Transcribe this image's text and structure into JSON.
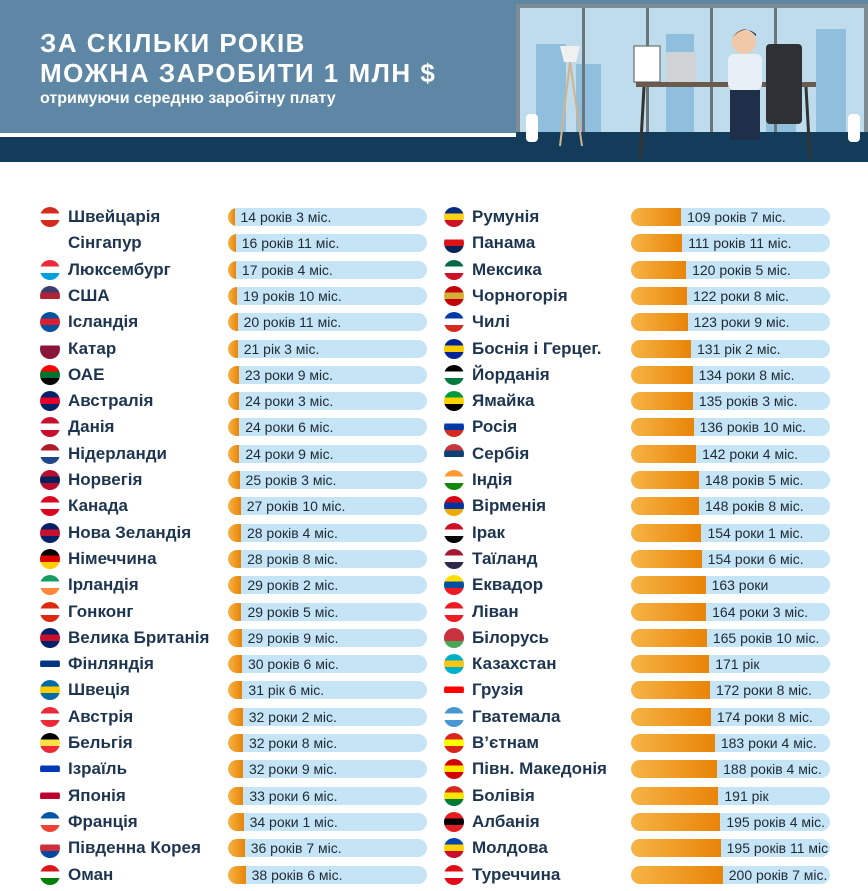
{
  "header": {
    "title_line1": "ЗА СКІЛЬКИ РОКІВ",
    "title_line2": "МОЖНА ЗАРОБИТИ 1 МЛН $",
    "subtitle": "отримуючи середню заробітну плату"
  },
  "chart_data": {
    "type": "bar",
    "title": "За скільки років можна заробити 1 млн $",
    "subtitle": "отримуючи середню заробітну плату",
    "unit": "years",
    "colors": {
      "fill": "#e98408",
      "track": "#c5e4f6"
    },
    "columns": [
      [
        {
          "country": "Швейцарія",
          "label": "14 років 3 міс.",
          "value": 14.25,
          "flag": [
            "#d52b1e",
            "#ffffff",
            "#d52b1e"
          ]
        },
        {
          "country": "Сінгапур",
          "label": "16 років 11 міс.",
          "value": 16.92,
          "flag": [
            "#ef3340",
            "#ffffff"
          ]
        },
        {
          "country": "Люксембург",
          "label": "17 років 4 міс.",
          "value": 17.33,
          "flag": [
            "#ed2939",
            "#ffffff",
            "#00a1de"
          ]
        },
        {
          "country": "США",
          "label": "19 років 10 міс.",
          "value": 19.83,
          "flag": [
            "#3c3b6e",
            "#b22234",
            "#ffffff"
          ]
        },
        {
          "country": "Ісландія",
          "label": "20 років 11 міс.",
          "value": 20.92,
          "flag": [
            "#02529c",
            "#dc1e35",
            "#02529c"
          ]
        },
        {
          "country": "Катар",
          "label": "21 рік 3 міс.",
          "value": 21.25,
          "flag": [
            "#ffffff",
            "#8a1538",
            "#8a1538"
          ]
        },
        {
          "country": "ОАЕ",
          "label": "23 роки 9 міс.",
          "value": 23.75,
          "flag": [
            "#ff0000",
            "#00732f",
            "#000000"
          ]
        },
        {
          "country": "Австралія",
          "label": "24 роки 3 міс.",
          "value": 24.25,
          "flag": [
            "#012169",
            "#e4002b",
            "#012169"
          ]
        },
        {
          "country": "Данія",
          "label": "24 роки 6 міс.",
          "value": 24.5,
          "flag": [
            "#c8102e",
            "#ffffff",
            "#c8102e"
          ]
        },
        {
          "country": "Нідерланди",
          "label": "24 роки 9 міс.",
          "value": 24.75,
          "flag": [
            "#ae1c28",
            "#ffffff",
            "#21468b"
          ]
        },
        {
          "country": "Норвегія",
          "label": "25 років 3 міс.",
          "value": 25.25,
          "flag": [
            "#ba0c2f",
            "#00205b",
            "#ba0c2f"
          ]
        },
        {
          "country": "Канада",
          "label": "27 років 10 міс.",
          "value": 27.83,
          "flag": [
            "#d80621",
            "#ffffff",
            "#d80621"
          ]
        },
        {
          "country": "Нова Зеландія",
          "label": "28 років 4 міс.",
          "value": 28.33,
          "flag": [
            "#012169",
            "#c8102e",
            "#012169"
          ]
        },
        {
          "country": "Німеччина",
          "label": "28 років 8 міс.",
          "value": 28.67,
          "flag": [
            "#000000",
            "#dd0000",
            "#ffce00"
          ]
        },
        {
          "country": "Ірландія",
          "label": "29 років 2 міс.",
          "value": 29.17,
          "flag": [
            "#169b62",
            "#ffffff",
            "#ff883e"
          ]
        },
        {
          "country": "Гонконг",
          "label": "29 років 5 міс.",
          "value": 29.42,
          "flag": [
            "#de2910",
            "#ffffff",
            "#de2910"
          ]
        },
        {
          "country": "Велика Британія",
          "label": "29 років 9 міс.",
          "value": 29.75,
          "flag": [
            "#012169",
            "#c8102e",
            "#012169"
          ]
        },
        {
          "country": "Фінляндія",
          "label": "30 років 6 міс.",
          "value": 30.5,
          "flag": [
            "#ffffff",
            "#003580",
            "#ffffff"
          ]
        },
        {
          "country": "Швеція",
          "label": "31 рік 6 міс.",
          "value": 31.5,
          "flag": [
            "#006aa7",
            "#fecc00",
            "#006aa7"
          ]
        },
        {
          "country": "Австрія",
          "label": "32 роки 2 міс.",
          "value": 32.17,
          "flag": [
            "#ed2939",
            "#ffffff",
            "#ed2939"
          ]
        },
        {
          "country": "Бельгія",
          "label": "32 роки 8 міс.",
          "value": 32.67,
          "flag": [
            "#000000",
            "#fae042",
            "#ed2939"
          ]
        },
        {
          "country": "Ізраїль",
          "label": "32 роки 9 міс.",
          "value": 32.75,
          "flag": [
            "#ffffff",
            "#0038b8",
            "#ffffff"
          ]
        },
        {
          "country": "Японія",
          "label": "33 роки 6 міс.",
          "value": 33.5,
          "flag": [
            "#ffffff",
            "#bc002d",
            "#ffffff"
          ]
        },
        {
          "country": "Франція",
          "label": "34 роки 1 міс.",
          "value": 34.08,
          "flag": [
            "#0055a4",
            "#ffffff",
            "#ef4135"
          ]
        },
        {
          "country": "Південна Корея",
          "label": "36 років 7 міс.",
          "value": 36.58,
          "flag": [
            "#ffffff",
            "#cd2e3a",
            "#0047a0"
          ]
        },
        {
          "country": "Оман",
          "label": "38 років 6 міс.",
          "value": 38.5,
          "flag": [
            "#db161b",
            "#ffffff",
            "#008000"
          ]
        }
      ],
      [
        {
          "country": "Румунія",
          "label": "109 років 7 міс.",
          "value": 109.58,
          "flag": [
            "#002b7f",
            "#fcd116",
            "#ce1126"
          ]
        },
        {
          "country": "Панама",
          "label": "111 років 11 міс.",
          "value": 111.92,
          "flag": [
            "#ffffff",
            "#da121a",
            "#072357"
          ]
        },
        {
          "country": "Мексика",
          "label": "120 років 5 міс.",
          "value": 120.42,
          "flag": [
            "#006847",
            "#ffffff",
            "#ce1126"
          ]
        },
        {
          "country": "Чорногорія",
          "label": "122 роки 8 міс.",
          "value": 122.67,
          "flag": [
            "#c40308",
            "#d4af37",
            "#c40308"
          ]
        },
        {
          "country": "Чилі",
          "label": "123 роки 9 міс.",
          "value": 123.75,
          "flag": [
            "#0039a6",
            "#ffffff",
            "#d52b1e"
          ]
        },
        {
          "country": "Боснія і Герцег.",
          "label": "131 рік 2 міс.",
          "value": 131.17,
          "flag": [
            "#002395",
            "#fecb00",
            "#002395"
          ]
        },
        {
          "country": "Йорданія",
          "label": "134 роки 8 міс.",
          "value": 134.67,
          "flag": [
            "#000000",
            "#ffffff",
            "#007a3d"
          ]
        },
        {
          "country": "Ямайка",
          "label": "135 років 3 міс.",
          "value": 135.25,
          "flag": [
            "#009b3a",
            "#fed100",
            "#000000"
          ]
        },
        {
          "country": "Росія",
          "label": "136 років 10 міс.",
          "value": 136.83,
          "flag": [
            "#ffffff",
            "#0039a6",
            "#d52b1e"
          ]
        },
        {
          "country": "Сербія",
          "label": "142 роки 4 міс.",
          "value": 142.33,
          "flag": [
            "#c6363c",
            "#0c4076",
            "#ffffff"
          ]
        },
        {
          "country": "Індія",
          "label": "148 років 5 міс.",
          "value": 148.42,
          "flag": [
            "#ff9933",
            "#ffffff",
            "#138808"
          ]
        },
        {
          "country": "Вірменія",
          "label": "148 років 8 міс.",
          "value": 148.67,
          "flag": [
            "#d90012",
            "#0033a0",
            "#f2a800"
          ]
        },
        {
          "country": "Ірак",
          "label": "154 роки 1 міс.",
          "value": 154.08,
          "flag": [
            "#ce1126",
            "#ffffff",
            "#000000"
          ]
        },
        {
          "country": "Таїланд",
          "label": "154 роки 6 міс.",
          "value": 154.5,
          "flag": [
            "#a51931",
            "#ffffff",
            "#2d2a4a"
          ]
        },
        {
          "country": "Еквадор",
          "label": "163 роки",
          "value": 163.0,
          "flag": [
            "#ffdd00",
            "#034ea2",
            "#ed1c24"
          ]
        },
        {
          "country": "Ліван",
          "label": "164 роки 3 міс.",
          "value": 164.25,
          "flag": [
            "#ed1c24",
            "#ffffff",
            "#ed1c24"
          ]
        },
        {
          "country": "Білорусь",
          "label": "165 років 10 міс.",
          "value": 165.83,
          "flag": [
            "#c8313e",
            "#c8313e",
            "#4aa657"
          ]
        },
        {
          "country": "Казахстан",
          "label": "171 рік",
          "value": 171.0,
          "flag": [
            "#00afca",
            "#fec50c",
            "#00afca"
          ]
        },
        {
          "country": "Грузія",
          "label": "172 роки 8 міс.",
          "value": 172.67,
          "flag": [
            "#ffffff",
            "#ff0000",
            "#ffffff"
          ]
        },
        {
          "country": "Гватемала",
          "label": "174 роки 8 міс.",
          "value": 174.67,
          "flag": [
            "#4997d0",
            "#ffffff",
            "#4997d0"
          ]
        },
        {
          "country": "В’єтнам",
          "label": "183 роки 4 міс.",
          "value": 183.33,
          "flag": [
            "#da251d",
            "#ffff00",
            "#da251d"
          ]
        },
        {
          "country": "Півн. Македонія",
          "label": "188 років 4 міс.",
          "value": 188.33,
          "flag": [
            "#d20000",
            "#ffe600",
            "#d20000"
          ]
        },
        {
          "country": "Болівія",
          "label": "191 рік",
          "value": 191.0,
          "flag": [
            "#d52b1e",
            "#f9e300",
            "#007934"
          ]
        },
        {
          "country": "Албанія",
          "label": "195 років 4 міс.",
          "value": 195.33,
          "flag": [
            "#e41e20",
            "#000000",
            "#e41e20"
          ]
        },
        {
          "country": "Молдова",
          "label": "195 років 11 міс.",
          "value": 195.92,
          "flag": [
            "#0046ae",
            "#ffd200",
            "#cc092f"
          ]
        },
        {
          "country": "Туреччина",
          "label": "200 років 7 міс.",
          "value": 200.58,
          "flag": [
            "#e30a17",
            "#ffffff",
            "#e30a17"
          ]
        }
      ]
    ],
    "xlim": [
      0,
      435
    ]
  }
}
